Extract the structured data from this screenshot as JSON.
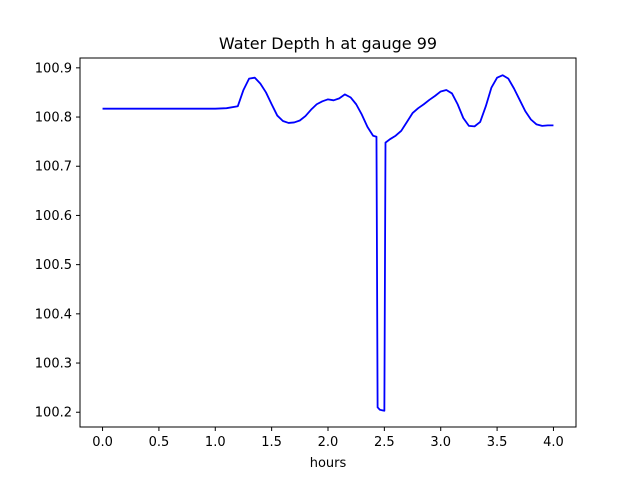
{
  "chart_data": {
    "type": "line",
    "title": "Water Depth h at gauge 99",
    "xlabel": "hours",
    "ylabel": "",
    "xlim": [
      -0.2,
      4.2
    ],
    "ylim": [
      100.17,
      100.92
    ],
    "xticks": [
      0.0,
      0.5,
      1.0,
      1.5,
      2.0,
      2.5,
      3.0,
      3.5,
      4.0
    ],
    "xtick_labels": [
      "0.0",
      "0.5",
      "1.0",
      "1.5",
      "2.0",
      "2.5",
      "3.0",
      "3.5",
      "4.0"
    ],
    "yticks": [
      100.2,
      100.3,
      100.4,
      100.5,
      100.6,
      100.7,
      100.8,
      100.9
    ],
    "ytick_labels": [
      "100.2",
      "100.3",
      "100.4",
      "100.5",
      "100.6",
      "100.7",
      "100.8",
      "100.9"
    ],
    "grid": false,
    "series": [
      {
        "color": "#0000ff",
        "x": [
          0.0,
          0.2,
          0.4,
          0.6,
          0.8,
          1.0,
          1.1,
          1.2,
          1.25,
          1.3,
          1.35,
          1.4,
          1.45,
          1.5,
          1.55,
          1.6,
          1.65,
          1.7,
          1.75,
          1.8,
          1.85,
          1.9,
          1.95,
          2.0,
          2.05,
          2.1,
          2.15,
          2.2,
          2.25,
          2.3,
          2.35,
          2.4,
          2.43,
          2.44,
          2.46,
          2.5,
          2.51,
          2.55,
          2.6,
          2.65,
          2.7,
          2.75,
          2.8,
          2.85,
          2.9,
          2.95,
          3.0,
          3.05,
          3.1,
          3.15,
          3.2,
          3.25,
          3.3,
          3.35,
          3.4,
          3.45,
          3.5,
          3.55,
          3.6,
          3.65,
          3.7,
          3.75,
          3.8,
          3.85,
          3.9,
          3.95,
          4.0
        ],
        "y": [
          100.817,
          100.817,
          100.817,
          100.817,
          100.817,
          100.817,
          100.818,
          100.822,
          100.855,
          100.878,
          100.88,
          100.868,
          100.85,
          100.826,
          100.803,
          100.792,
          100.788,
          100.789,
          100.793,
          100.802,
          100.815,
          100.826,
          100.832,
          100.836,
          100.834,
          100.838,
          100.846,
          100.84,
          100.826,
          100.805,
          100.78,
          100.762,
          100.76,
          100.21,
          100.205,
          100.203,
          100.748,
          100.755,
          100.762,
          100.772,
          100.79,
          100.808,
          100.818,
          100.826,
          100.835,
          100.843,
          100.852,
          100.855,
          100.848,
          100.826,
          100.798,
          100.782,
          100.781,
          100.79,
          100.822,
          100.86,
          100.88,
          100.885,
          100.878,
          100.858,
          100.835,
          100.812,
          100.795,
          100.785,
          100.782,
          100.783,
          100.783
        ]
      }
    ]
  }
}
